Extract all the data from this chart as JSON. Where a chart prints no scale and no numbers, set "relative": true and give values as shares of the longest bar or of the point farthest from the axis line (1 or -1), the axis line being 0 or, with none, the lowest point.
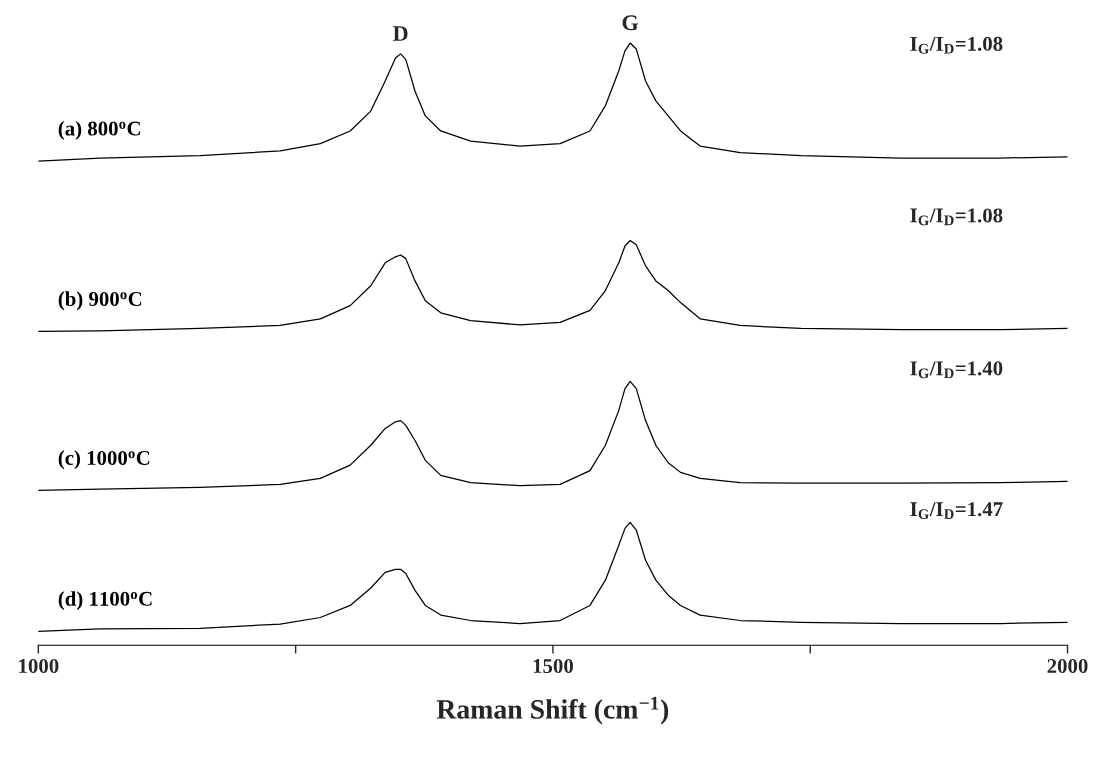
{
  "chart_data": {
    "type": "line",
    "relative": true,
    "xlabel": "Raman Shift (cm$^{−1}$)",
    "xlim": [
      1000,
      2000
    ],
    "xticks": [
      1000,
      {
        "value": 1250,
        "label": null
      },
      1500,
      {
        "value": 1750,
        "label": null
      },
      2000
    ],
    "x": [
      1000,
      1060,
      1157,
      1235,
      1274,
      1303,
      1323,
      1337,
      1347,
      1352,
      1357,
      1366,
      1376,
      1391,
      1420,
      1468,
      1507,
      1536,
      1551,
      1564,
      1570,
      1575,
      1581,
      1590,
      1600,
      1612,
      1624,
      1643,
      1682,
      1741,
      1838,
      1935,
      2000
    ],
    "series": [
      {
        "name": "(a) 800$^{o}$C",
        "color": "#000000",
        "values": [
          0.804,
          0.809,
          0.813,
          0.821,
          0.833,
          0.854,
          0.887,
          0.937,
          0.975,
          0.982,
          0.973,
          0.92,
          0.879,
          0.854,
          0.837,
          0.829,
          0.833,
          0.854,
          0.896,
          0.954,
          0.987,
          1.0,
          0.99,
          0.937,
          0.904,
          0.879,
          0.854,
          0.829,
          0.818,
          0.813,
          0.809,
          0.809,
          0.811
        ]
      },
      {
        "name": "(b) 900$^{o}$C",
        "color": "#000000",
        "values": [
          0.521,
          0.522,
          0.526,
          0.531,
          0.542,
          0.564,
          0.597,
          0.635,
          0.645,
          0.648,
          0.642,
          0.605,
          0.572,
          0.552,
          0.539,
          0.532,
          0.536,
          0.556,
          0.589,
          0.635,
          0.663,
          0.672,
          0.665,
          0.63,
          0.605,
          0.589,
          0.569,
          0.542,
          0.531,
          0.526,
          0.524,
          0.524,
          0.526
        ]
      },
      {
        "name": "(c) 1000$^{o}$C",
        "color": "#000000",
        "values": [
          0.257,
          0.259,
          0.262,
          0.267,
          0.277,
          0.299,
          0.332,
          0.36,
          0.371,
          0.373,
          0.365,
          0.34,
          0.307,
          0.282,
          0.27,
          0.265,
          0.267,
          0.29,
          0.332,
          0.39,
          0.426,
          0.438,
          0.426,
          0.373,
          0.332,
          0.303,
          0.287,
          0.277,
          0.27,
          0.269,
          0.269,
          0.27,
          0.272
        ]
      },
      {
        "name": "(d) 1100$^{o}$C",
        "color": "#000000",
        "values": [
          0.023,
          0.027,
          0.028,
          0.035,
          0.046,
          0.066,
          0.095,
          0.121,
          0.126,
          0.126,
          0.119,
          0.091,
          0.066,
          0.05,
          0.041,
          0.036,
          0.041,
          0.066,
          0.108,
          0.166,
          0.194,
          0.204,
          0.191,
          0.141,
          0.108,
          0.083,
          0.066,
          0.05,
          0.041,
          0.038,
          0.036,
          0.036,
          0.038
        ]
      }
    ],
    "annotations": [
      {
        "text": "D",
        "x": 1352,
        "y": 0.982
      },
      {
        "text": "G",
        "x": 1575,
        "y": 1.0
      },
      "I$_{G}$/I$_{D}$=1.08",
      "I$_{G}$/I$_{D}$=1.08",
      "I$_{G}$/I$_{D}$=1.40",
      "I$_{G}$/I$_{D}$=1.47"
    ],
    "marker": "none",
    "line_style": "solid",
    "grid": false,
    "legend": false
  }
}
